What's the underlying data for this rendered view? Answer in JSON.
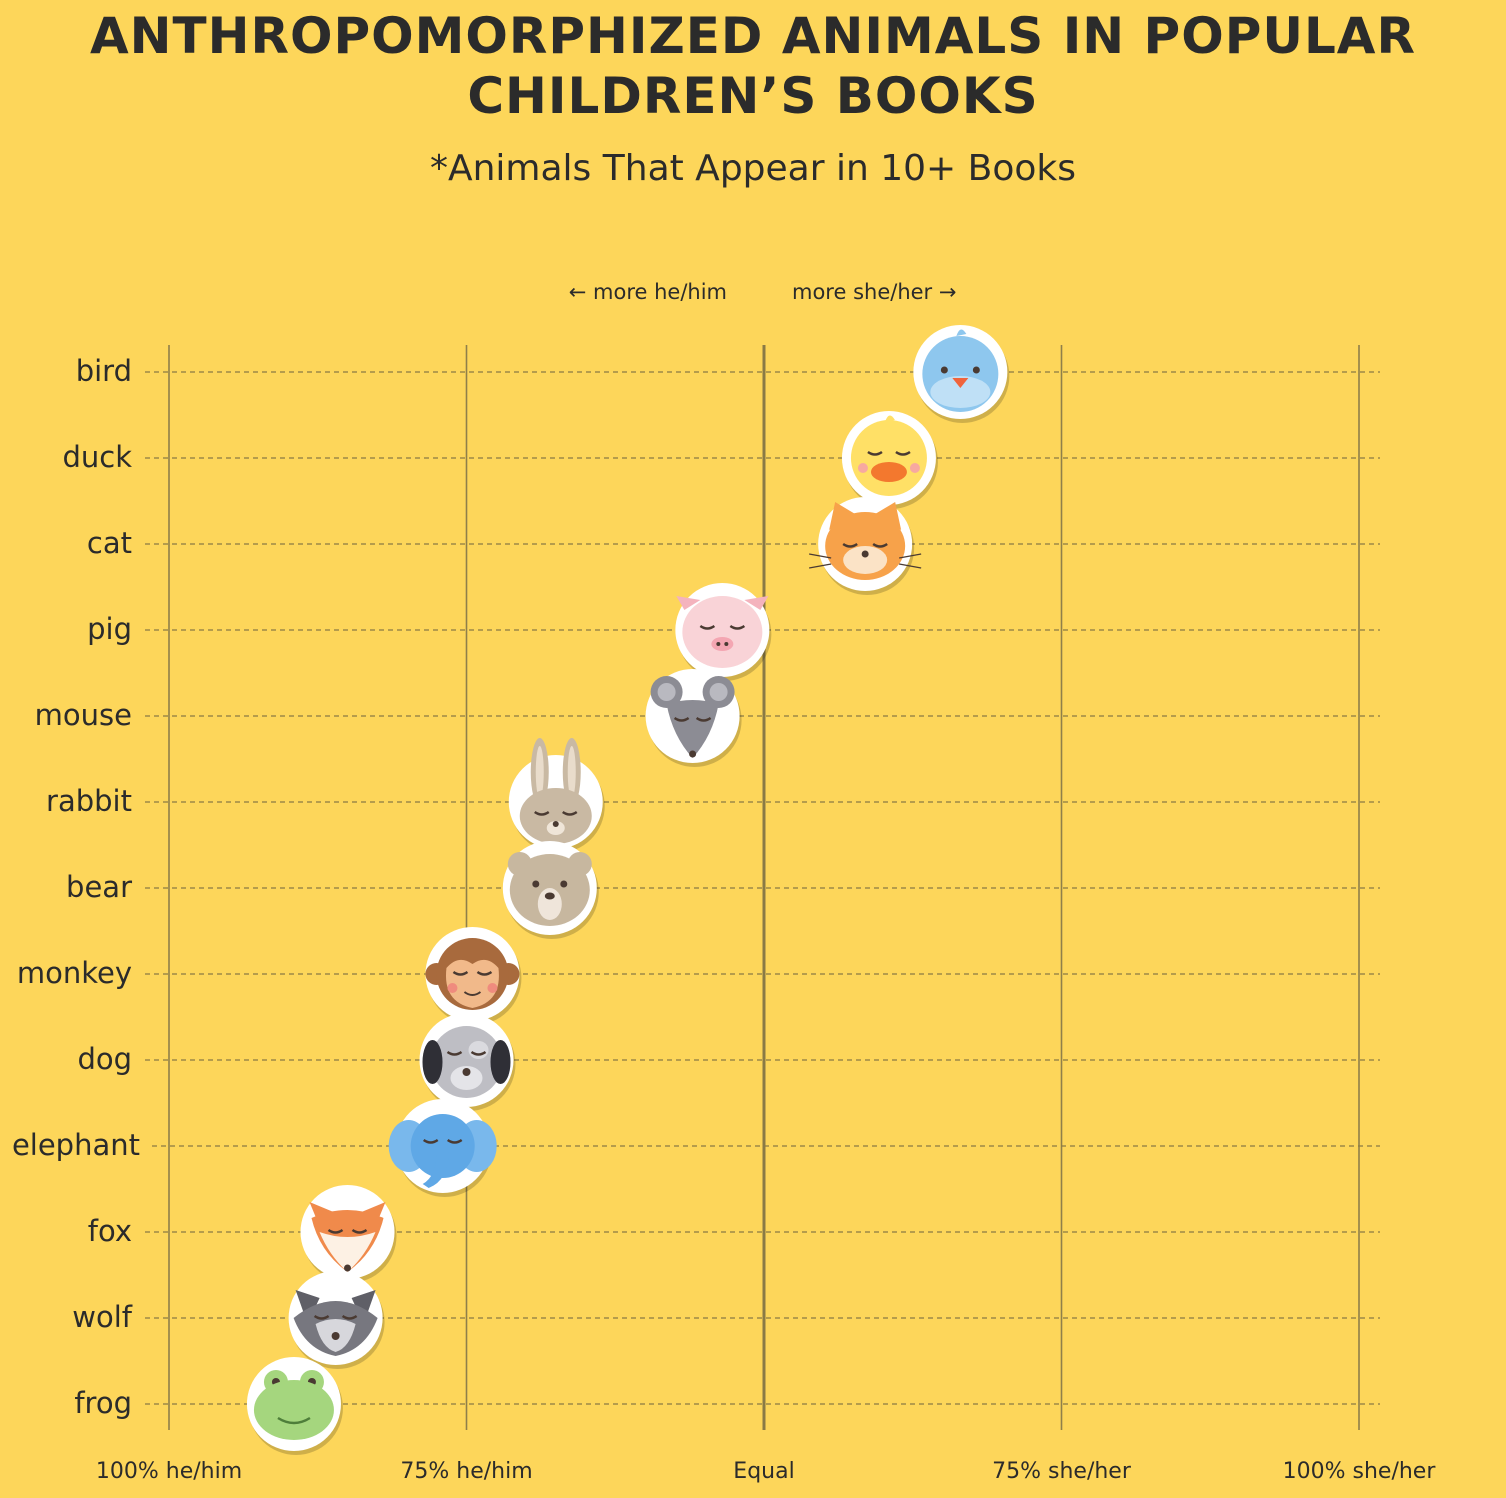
{
  "title": "ANTHROPOMORPHIZED ANIMALS IN POPULAR CHILDREN’S BOOKS",
  "subtitle": "*Animals That Appear in 10+ Books",
  "chart_data": {
    "type": "scatter",
    "direction_labels": {
      "left": "← more he/him",
      "right": "more she/her →"
    },
    "x_ticks": [
      {
        "value": -100,
        "label": "100% he/him"
      },
      {
        "value": -50,
        "label": "75% he/him"
      },
      {
        "value": 0,
        "label": "Equal"
      },
      {
        "value": 50,
        "label": "75% she/her"
      },
      {
        "value": 100,
        "label": "100% she/her"
      }
    ],
    "xlim": [
      -100,
      100
    ],
    "grid": true,
    "points": [
      {
        "animal": "bird",
        "x": 33,
        "icon": "bird-face-icon",
        "color": "#8EC7EE"
      },
      {
        "animal": "duck",
        "x": 21,
        "icon": "duck-face-icon",
        "color": "#FFE066"
      },
      {
        "animal": "cat",
        "x": 17,
        "icon": "cat-face-icon",
        "color": "#F7A24A"
      },
      {
        "animal": "pig",
        "x": -7,
        "icon": "pig-face-icon",
        "color": "#F9D3D7"
      },
      {
        "animal": "mouse",
        "x": -12,
        "icon": "mouse-face-icon",
        "color": "#8C8C94"
      },
      {
        "animal": "rabbit",
        "x": -35,
        "icon": "rabbit-face-icon",
        "color": "#C9B9A3"
      },
      {
        "animal": "bear",
        "x": -36,
        "icon": "bear-face-icon",
        "color": "#C7B79F"
      },
      {
        "animal": "monkey",
        "x": -49,
        "icon": "monkey-face-icon",
        "color": "#A86A3D"
      },
      {
        "animal": "dog",
        "x": -50,
        "icon": "dog-face-icon",
        "color": "#BEBEC4"
      },
      {
        "animal": "elephant",
        "x": -54,
        "icon": "elephant-face-icon",
        "color": "#5FA8E6"
      },
      {
        "animal": "fox",
        "x": -70,
        "icon": "fox-face-icon",
        "color": "#F08A4B"
      },
      {
        "animal": "wolf",
        "x": -72,
        "icon": "wolf-face-icon",
        "color": "#77777F"
      },
      {
        "animal": "frog",
        "x": -79,
        "icon": "frog-face-icon",
        "color": "#A5D67E"
      }
    ]
  }
}
